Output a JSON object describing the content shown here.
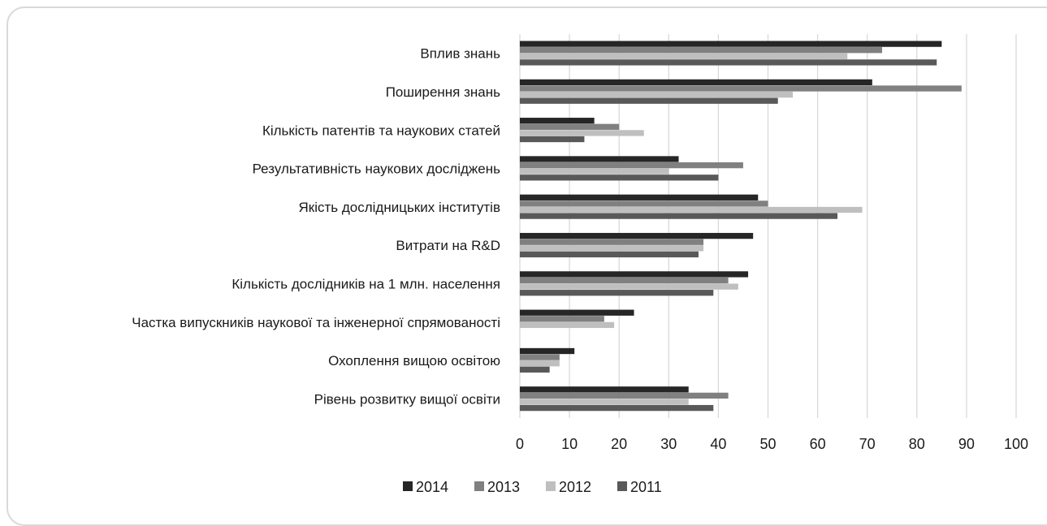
{
  "chart_data": {
    "type": "bar",
    "orientation": "horizontal",
    "categories": [
      "Вплив знань",
      "Поширення знань",
      "Кількість патентів та наукових статей",
      "Результативність наукових досліджень",
      "Якість дослідницьких інститутів",
      "Витрати на R&D",
      "Кількість дослідників на 1 млн. населення",
      "Частка випускників наукової та інженерної спрямованості",
      "Охоплення вищою освітою",
      "Рівень розвитку вищої освіти"
    ],
    "series": [
      {
        "name": "2014",
        "color": "#262626",
        "values": [
          85,
          71,
          15,
          32,
          48,
          47,
          46,
          23,
          11,
          34
        ]
      },
      {
        "name": "2013",
        "color": "#808080",
        "values": [
          73,
          89,
          20,
          45,
          50,
          37,
          42,
          17,
          8,
          42
        ]
      },
      {
        "name": "2012",
        "color": "#bfbfbf",
        "values": [
          66,
          55,
          25,
          30,
          69,
          37,
          44,
          19,
          8,
          34
        ]
      },
      {
        "name": "2011",
        "color": "#595959",
        "values": [
          84,
          52,
          13,
          40,
          64,
          36,
          39,
          0,
          6,
          39
        ]
      }
    ],
    "xlim": [
      0,
      100
    ],
    "xticks": [
      "0",
      "10",
      "20",
      "30",
      "40",
      "50",
      "60",
      "70",
      "80",
      "90",
      "100"
    ],
    "grid": true,
    "legend_position": "bottom",
    "title": "",
    "xlabel": "",
    "ylabel": ""
  }
}
